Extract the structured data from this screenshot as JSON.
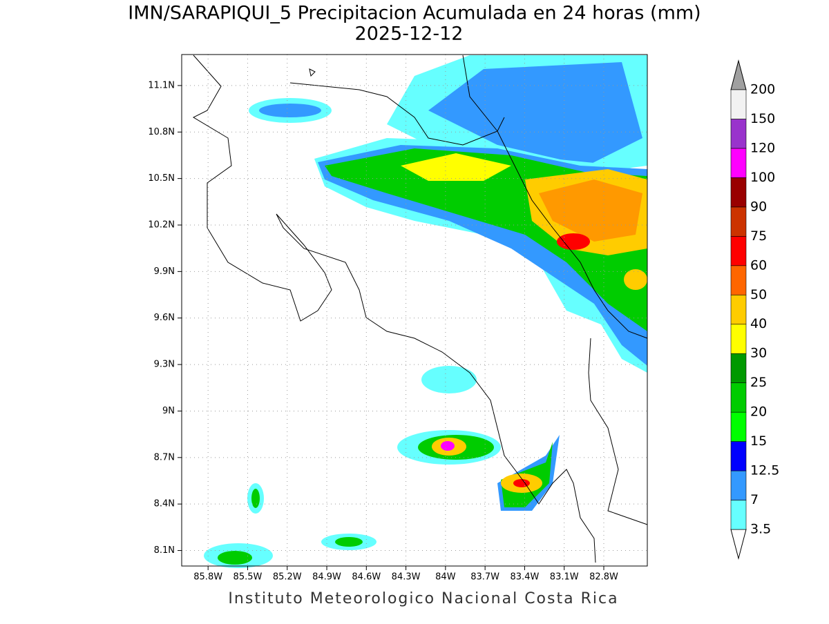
{
  "chart_data": {
    "type": "map",
    "title": "IMN/SARAPIQUI_5 Precipitacion Acumulada en 24 horas (mm)",
    "subtitle": "2025-12-12",
    "footer": "Instituto Meteorologico Nacional Costa Rica",
    "xlim": [
      -86.0,
      -82.47
    ],
    "ylim": [
      8.0,
      11.3
    ],
    "xticks": [
      {
        "value": -85.8,
        "label": "85.8W"
      },
      {
        "value": -85.5,
        "label": "85.5W"
      },
      {
        "value": -85.2,
        "label": "85.2W"
      },
      {
        "value": -84.9,
        "label": "84.9W"
      },
      {
        "value": -84.6,
        "label": "84.6W"
      },
      {
        "value": -84.3,
        "label": "84.3W"
      },
      {
        "value": -84.0,
        "label": "84W"
      },
      {
        "value": -83.7,
        "label": "83.7W"
      },
      {
        "value": -83.4,
        "label": "83.4W"
      },
      {
        "value": -83.1,
        "label": "83.1W"
      },
      {
        "value": -82.8,
        "label": "82.8W"
      }
    ],
    "yticks": [
      {
        "value": 8.1,
        "label": "8.1N"
      },
      {
        "value": 8.4,
        "label": "8.4N"
      },
      {
        "value": 8.7,
        "label": "8.7N"
      },
      {
        "value": 9.0,
        "label": "9N"
      },
      {
        "value": 9.3,
        "label": "9.3N"
      },
      {
        "value": 9.6,
        "label": "9.6N"
      },
      {
        "value": 9.9,
        "label": "9.9N"
      },
      {
        "value": 10.2,
        "label": "10.2N"
      },
      {
        "value": 10.5,
        "label": "10.5N"
      },
      {
        "value": 10.8,
        "label": "10.8N"
      },
      {
        "value": 11.1,
        "label": "11.1N"
      }
    ],
    "grid": true,
    "colorbar": {
      "levels": [
        3.5,
        7,
        12.5,
        15,
        20,
        25,
        30,
        40,
        50,
        60,
        75,
        90,
        100,
        120,
        150,
        200
      ],
      "colors": [
        "#66ffff",
        "#3399ff",
        "#0000ff",
        "#00ff00",
        "#00cc00",
        "#009900",
        "#ffff00",
        "#ffcc00",
        "#ff6600",
        "#ff0000",
        "#cc3300",
        "#990000",
        "#ff00ff",
        "#9933cc",
        "#f2f2f2"
      ],
      "under_color": "#ffffff",
      "over_color": "#a0a0a0"
    }
  }
}
